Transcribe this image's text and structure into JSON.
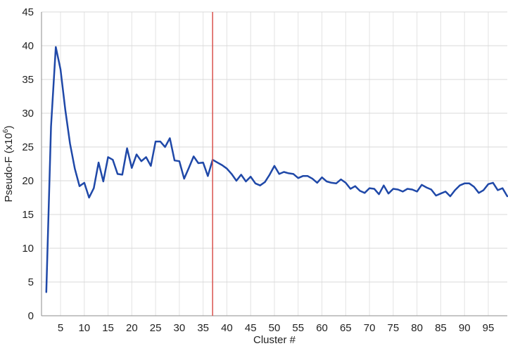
{
  "chart_data": {
    "type": "line",
    "title": "",
    "xlabel": "Cluster #",
    "ylabel": "Pseudo-F (x10",
    "ylabel_superscript": "6",
    "ylabel_suffix": ")",
    "xlim": [
      1,
      99
    ],
    "ylim": [
      0,
      45
    ],
    "xticks": [
      5,
      10,
      15,
      20,
      25,
      30,
      35,
      40,
      45,
      50,
      55,
      60,
      65,
      70,
      75,
      80,
      85,
      90,
      95
    ],
    "yticks": [
      0,
      5,
      10,
      15,
      20,
      25,
      30,
      35,
      40,
      45
    ],
    "grid": true,
    "series": [
      {
        "color": "#1f48a8",
        "x": [
          2,
          3,
          4,
          5,
          6,
          7,
          8,
          9,
          10,
          11,
          12,
          13,
          14,
          15,
          16,
          17,
          18,
          19,
          20,
          21,
          22,
          23,
          24,
          25,
          26,
          27,
          28,
          29,
          30,
          31,
          32,
          33,
          34,
          35,
          36,
          37,
          38,
          39,
          40,
          41,
          42,
          43,
          44,
          45,
          46,
          47,
          48,
          49,
          50,
          51,
          52,
          53,
          54,
          55,
          56,
          57,
          58,
          59,
          60,
          61,
          62,
          63,
          64,
          65,
          66,
          67,
          68,
          69,
          70,
          71,
          72,
          73,
          74,
          75,
          76,
          77,
          78,
          79,
          80,
          81,
          82,
          83,
          84,
          85,
          86,
          87,
          88,
          89,
          90,
          91,
          92,
          93,
          94,
          95,
          96,
          97,
          98,
          99
        ],
        "y": [
          3.5,
          28,
          39.8,
          36.5,
          30.5,
          25.5,
          21.8,
          19.2,
          19.7,
          17.5,
          18.9,
          22.7,
          19.9,
          23.5,
          23.1,
          21,
          20.9,
          24.8,
          21.9,
          23.9,
          22.9,
          23.5,
          22.2,
          25.8,
          25.8,
          25,
          26.3,
          23,
          22.9,
          20.3,
          21.9,
          23.6,
          22.6,
          22.7,
          20.7,
          23.1,
          22.7,
          22.3,
          21.8,
          21,
          20,
          20.9,
          19.9,
          20.6,
          19.6,
          19.3,
          19.8,
          20.9,
          22.2,
          21,
          21.3,
          21.1,
          21,
          20.4,
          20.7,
          20.7,
          20.3,
          19.7,
          20.5,
          19.9,
          19.7,
          19.6,
          20.2,
          19.7,
          18.8,
          19.2,
          18.5,
          18.2,
          18.9,
          18.8,
          18,
          19.3,
          18.1,
          18.8,
          18.7,
          18.4,
          18.8,
          18.7,
          18.4,
          19.4,
          19,
          18.7,
          17.8,
          18.1,
          18.4,
          17.7,
          18.6,
          19.3,
          19.6,
          19.6,
          19.1,
          18.2,
          18.6,
          19.5,
          19.7,
          18.6,
          18.9,
          17.7
        ]
      }
    ],
    "annotations": [
      {
        "type": "vline",
        "x": 37,
        "color": "#d9534f"
      }
    ]
  }
}
